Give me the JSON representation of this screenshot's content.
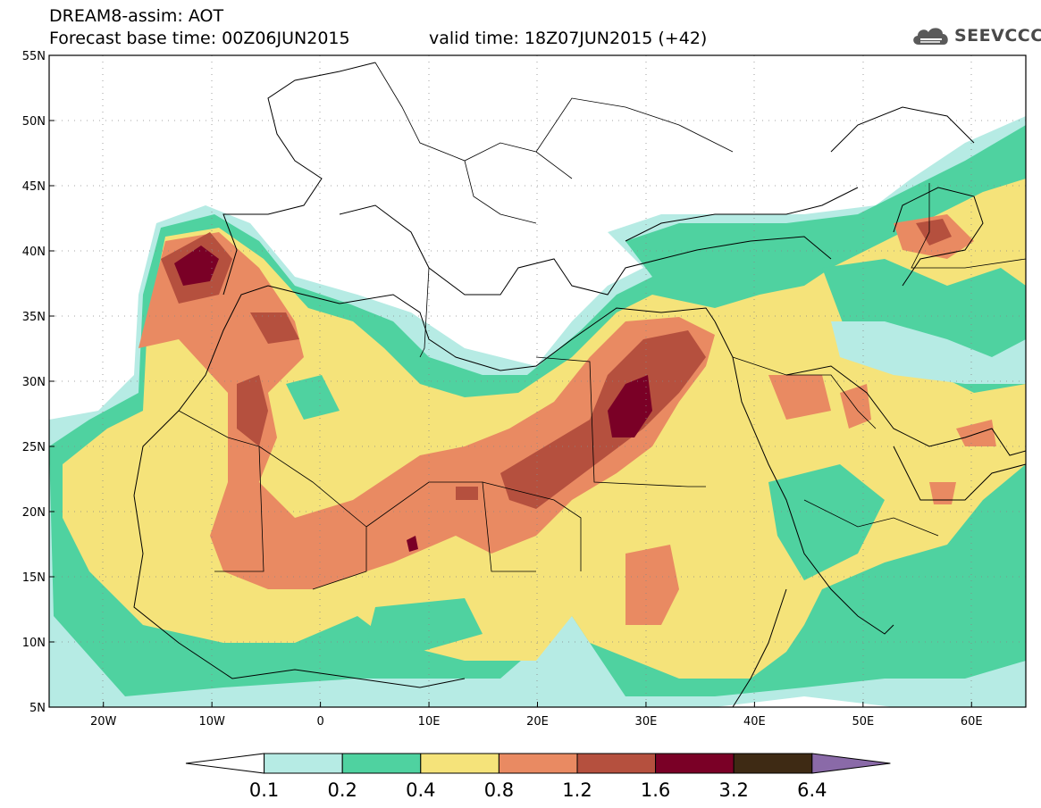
{
  "header": {
    "title": "DREAM8-assim: AOT",
    "base_time": "Forecast base time: 00Z06JUN2015",
    "valid_time": "valid time: 18Z07JUN2015 (+42)"
  },
  "logo": {
    "text": "SEEVCCC",
    "icon": "cloud-icon"
  },
  "map": {
    "lat_labels": [
      "55N",
      "50N",
      "45N",
      "40N",
      "35N",
      "30N",
      "25N",
      "20N",
      "15N",
      "10N",
      "5N"
    ],
    "lon_labels": [
      "20W",
      "10W",
      "0",
      "10E",
      "20E",
      "30E",
      "40E",
      "50E",
      "60E"
    ],
    "lat_range": [
      5,
      55
    ],
    "lon_range": [
      -25,
      65
    ]
  },
  "colorbar": {
    "labels": [
      "0.1",
      "0.2",
      "0.4",
      "0.8",
      "1.2",
      "1.6",
      "3.2",
      "6.4"
    ],
    "colors": [
      "#ffffff",
      "#b6ebe4",
      "#4fd2a0",
      "#f5e37a",
      "#e98a62",
      "#b5503e",
      "#7a0026",
      "#3e2a14",
      "#8a6aa8"
    ]
  }
}
